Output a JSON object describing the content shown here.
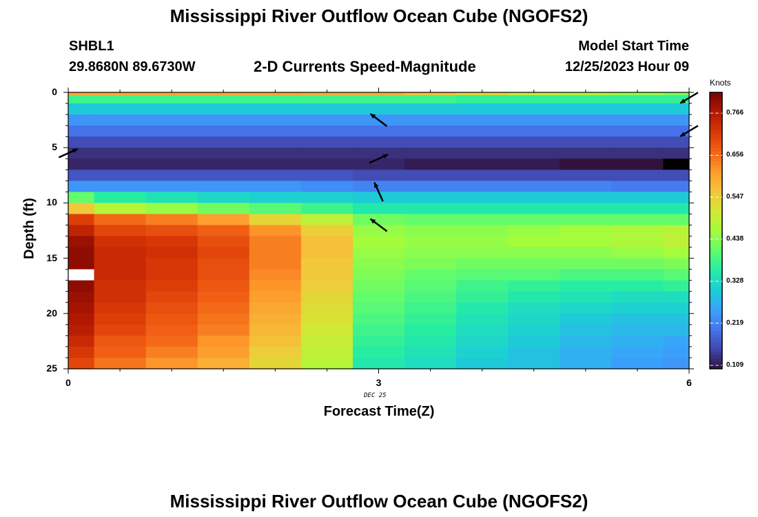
{
  "page": {
    "title_top": "Mississippi River Outflow Ocean Cube (NGOFS2)",
    "title_bottom": "Mississippi River Outflow Ocean Cube (NGOFS2)",
    "station_id": "SHBL1",
    "coordinates": "29.8680N  89.6730W",
    "plot_title": "2-D Currents Speed-Magnitude",
    "model_start_label": "Model Start Time",
    "model_start_value": "12/25/2023 Hour 09",
    "date_annotation": "DEC 25"
  },
  "chart_data": {
    "type": "heatmap",
    "xlabel": "Forecast Time(Z)",
    "ylabel": "Depth (ft)",
    "xlim": [
      0,
      6
    ],
    "ylim": [
      25,
      0
    ],
    "xticks": [
      0,
      3,
      6
    ],
    "yticks": [
      0,
      5,
      10,
      15,
      20,
      25
    ],
    "grid": false,
    "colorbar": {
      "unit": "Knots",
      "min": 0.1,
      "max": 0.82,
      "ticks": [
        0.109,
        0.219,
        0.328,
        0.438,
        0.547,
        0.656,
        0.766
      ],
      "tick_labels": [
        "0.109",
        "0.219",
        "0.328",
        "0.438",
        "0.547",
        "0.656",
        "0.766"
      ],
      "colormap": [
        "#30123b",
        "#4145ab",
        "#4675ed",
        "#39a2fc",
        "#1bcfd4",
        "#24eca6",
        "#61fc6c",
        "#a4fc3b",
        "#d1e834",
        "#f3c63a",
        "#fe9b2d",
        "#f36315",
        "#d93806",
        "#b11901",
        "#7a0403"
      ],
      "missing_color": "#000000",
      "no_data_color": "#ffffff"
    },
    "x_columns": [
      0,
      0.5,
      1.0,
      1.5,
      2.0,
      2.5,
      3.0,
      3.5,
      4.0,
      4.5,
      5.0,
      5.5,
      6.0
    ],
    "depth_rows": [
      0,
      0.5,
      1.5,
      2.5,
      3.5,
      4.5,
      5.5,
      6.5,
      7.5,
      8.5,
      9.5,
      10.5,
      11.5,
      12.5,
      13.5,
      14.5,
      15.5,
      16.5,
      17.5,
      18.5,
      19.5,
      20.5,
      21.5,
      22.5,
      23.5,
      24.5
    ],
    "values": [
      [
        0.6,
        0.6,
        0.6,
        0.6,
        0.6,
        0.59,
        0.59,
        0.57,
        0.54,
        0.51,
        0.48,
        0.45,
        0.43
      ],
      [
        0.38,
        0.38,
        0.38,
        0.38,
        0.38,
        0.38,
        0.38,
        0.38,
        0.37,
        0.37,
        0.37,
        0.37,
        0.37
      ],
      [
        0.3,
        0.3,
        0.3,
        0.3,
        0.3,
        0.3,
        0.3,
        0.3,
        0.3,
        0.3,
        0.3,
        0.3,
        0.3
      ],
      [
        0.24,
        0.24,
        0.24,
        0.24,
        0.24,
        0.24,
        0.24,
        0.24,
        0.24,
        0.24,
        0.24,
        0.24,
        0.24
      ],
      [
        0.2,
        0.2,
        0.2,
        0.2,
        0.2,
        0.2,
        0.2,
        0.2,
        0.2,
        0.2,
        0.2,
        0.2,
        0.2
      ],
      [
        0.16,
        0.16,
        0.16,
        0.16,
        0.16,
        0.16,
        0.16,
        0.16,
        0.16,
        0.16,
        0.16,
        0.16,
        0.16
      ],
      [
        0.13,
        0.13,
        0.13,
        0.13,
        0.13,
        0.13,
        0.13,
        0.13,
        0.13,
        0.13,
        0.13,
        0.13,
        0.13
      ],
      [
        0.12,
        0.12,
        0.12,
        0.12,
        0.12,
        0.12,
        0.12,
        0.11,
        0.11,
        0.11,
        0.1,
        0.1,
        null
      ],
      [
        0.17,
        0.17,
        0.17,
        0.17,
        0.17,
        0.17,
        0.16,
        0.16,
        0.16,
        0.16,
        0.16,
        0.16,
        0.16
      ],
      [
        0.24,
        0.24,
        0.24,
        0.24,
        0.24,
        0.23,
        0.22,
        0.22,
        0.22,
        0.22,
        0.22,
        0.21,
        0.21
      ],
      [
        0.41,
        0.36,
        0.34,
        0.32,
        0.31,
        0.31,
        0.3,
        0.3,
        0.3,
        0.3,
        0.3,
        0.3,
        0.3
      ],
      [
        0.56,
        0.48,
        0.45,
        0.42,
        0.4,
        0.38,
        0.35,
        0.35,
        0.35,
        0.35,
        0.35,
        0.35,
        0.35
      ],
      [
        0.71,
        0.66,
        0.64,
        0.61,
        0.54,
        0.49,
        0.42,
        0.41,
        0.41,
        0.41,
        0.41,
        0.41,
        0.41
      ],
      [
        0.75,
        0.7,
        0.69,
        0.67,
        0.62,
        0.55,
        0.45,
        0.44,
        0.44,
        0.45,
        0.46,
        0.47,
        0.48
      ],
      [
        0.79,
        0.73,
        0.72,
        0.69,
        0.64,
        0.57,
        0.46,
        0.45,
        0.45,
        0.46,
        0.46,
        0.47,
        0.49
      ],
      [
        0.8,
        0.74,
        0.73,
        0.7,
        0.64,
        0.57,
        0.45,
        0.44,
        0.44,
        0.44,
        0.44,
        0.45,
        0.46
      ],
      [
        0.8,
        0.74,
        0.72,
        0.69,
        0.64,
        0.56,
        0.44,
        0.43,
        0.42,
        0.42,
        0.42,
        0.42,
        0.43
      ],
      [
        null,
        0.74,
        0.72,
        0.69,
        0.63,
        0.56,
        0.43,
        0.41,
        0.4,
        0.4,
        0.39,
        0.39,
        0.4
      ],
      [
        0.8,
        0.73,
        0.71,
        0.68,
        0.62,
        0.55,
        0.42,
        0.4,
        0.38,
        0.37,
        0.36,
        0.36,
        0.37
      ],
      [
        0.79,
        0.73,
        0.7,
        0.67,
        0.61,
        0.54,
        0.41,
        0.39,
        0.37,
        0.35,
        0.34,
        0.33,
        0.33
      ],
      [
        0.78,
        0.72,
        0.69,
        0.66,
        0.6,
        0.53,
        0.4,
        0.38,
        0.35,
        0.33,
        0.32,
        0.31,
        0.31
      ],
      [
        0.77,
        0.71,
        0.68,
        0.65,
        0.59,
        0.52,
        0.39,
        0.37,
        0.34,
        0.32,
        0.3,
        0.29,
        0.29
      ],
      [
        0.76,
        0.7,
        0.67,
        0.64,
        0.58,
        0.51,
        0.38,
        0.36,
        0.33,
        0.31,
        0.29,
        0.28,
        0.28
      ],
      [
        0.74,
        0.68,
        0.66,
        0.62,
        0.57,
        0.5,
        0.37,
        0.35,
        0.32,
        0.3,
        0.28,
        0.27,
        0.26
      ],
      [
        0.72,
        0.67,
        0.64,
        0.61,
        0.55,
        0.49,
        0.36,
        0.34,
        0.31,
        0.29,
        0.27,
        0.26,
        0.25
      ],
      [
        0.7,
        0.65,
        0.62,
        0.59,
        0.54,
        0.48,
        0.35,
        0.33,
        0.3,
        0.29,
        0.27,
        0.25,
        0.24
      ]
    ],
    "vectors": [
      {
        "time": 0,
        "depth": 5.5,
        "direction": "upper-right"
      },
      {
        "time": 3,
        "depth": 2.5,
        "direction": "upper-left"
      },
      {
        "time": 3,
        "depth": 6.0,
        "direction": "upper-right"
      },
      {
        "time": 3,
        "depth": 9.0,
        "direction": "up"
      },
      {
        "time": 3,
        "depth": 12.0,
        "direction": "upper-left"
      },
      {
        "time": 6,
        "depth": 0.5,
        "direction": "lower-left"
      },
      {
        "time": 6,
        "depth": 3.5,
        "direction": "lower-left"
      }
    ]
  }
}
